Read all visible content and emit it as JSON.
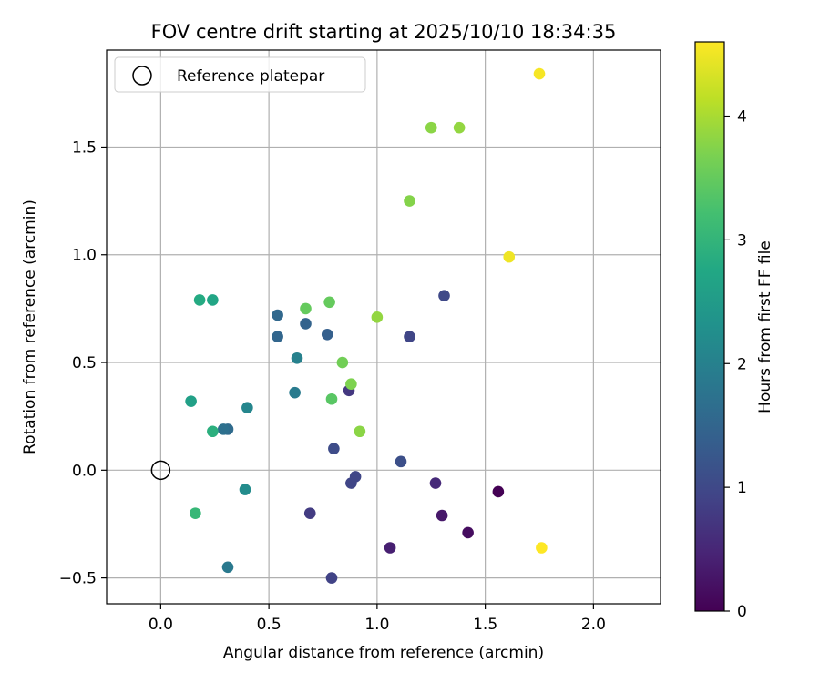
{
  "chart_data": {
    "type": "scatter",
    "title": "FOV centre drift starting at 2025/10/10 18:34:35",
    "xlabel": "Angular distance from reference (arcmin)",
    "ylabel": "Rotation from reference (arcmin)",
    "xlim": [
      -0.25,
      2.31
    ],
    "ylim": [
      -0.62,
      1.95
    ],
    "xticks": [
      0.0,
      0.5,
      1.0,
      1.5,
      2.0
    ],
    "xtick_labels": [
      "0.0",
      "0.5",
      "1.0",
      "1.5",
      "2.0"
    ],
    "yticks": [
      -0.5,
      0.0,
      0.5,
      1.0,
      1.5
    ],
    "ytick_labels": [
      "−0.5",
      "0.0",
      "0.5",
      "1.0",
      "1.5"
    ],
    "grid": true,
    "legend": {
      "location": "upper-left",
      "entries": [
        "Reference platepar"
      ]
    },
    "reference_point": {
      "x": 0.0,
      "y": 0.0,
      "label": "Reference platepar"
    },
    "colorbar": {
      "label": "Hours from first FF file",
      "colormap": "viridis",
      "range": [
        0,
        4.6
      ],
      "ticks": [
        0,
        1,
        2,
        3,
        4
      ],
      "tick_labels": [
        "0",
        "1",
        "2",
        "3",
        "4"
      ]
    },
    "points": [
      {
        "x": 1.56,
        "y": -0.1,
        "hours": 0.0
      },
      {
        "x": 1.42,
        "y": -0.29,
        "hours": 0.15
      },
      {
        "x": 1.3,
        "y": -0.21,
        "hours": 0.3
      },
      {
        "x": 1.06,
        "y": -0.36,
        "hours": 0.4
      },
      {
        "x": 1.27,
        "y": -0.06,
        "hours": 0.55
      },
      {
        "x": 0.87,
        "y": 0.37,
        "hours": 0.75
      },
      {
        "x": 0.69,
        "y": -0.2,
        "hours": 0.8
      },
      {
        "x": 0.79,
        "y": -0.5,
        "hours": 0.9
      },
      {
        "x": 0.9,
        "y": -0.03,
        "hours": 0.95
      },
      {
        "x": 0.88,
        "y": -0.06,
        "hours": 0.95
      },
      {
        "x": 1.15,
        "y": 0.62,
        "hours": 0.95
      },
      {
        "x": 1.31,
        "y": 0.81,
        "hours": 1.0
      },
      {
        "x": 0.8,
        "y": 0.1,
        "hours": 1.05
      },
      {
        "x": 1.11,
        "y": 0.04,
        "hours": 1.1
      },
      {
        "x": 0.77,
        "y": 0.63,
        "hours": 1.4
      },
      {
        "x": 0.67,
        "y": 0.68,
        "hours": 1.45
      },
      {
        "x": 0.54,
        "y": 0.62,
        "hours": 1.5
      },
      {
        "x": 0.54,
        "y": 0.72,
        "hours": 1.55
      },
      {
        "x": 0.31,
        "y": 0.19,
        "hours": 1.6
      },
      {
        "x": 0.29,
        "y": 0.19,
        "hours": 1.7
      },
      {
        "x": 0.31,
        "y": -0.45,
        "hours": 1.85
      },
      {
        "x": 0.62,
        "y": 0.36,
        "hours": 1.9
      },
      {
        "x": 0.63,
        "y": 0.52,
        "hours": 2.0
      },
      {
        "x": 0.4,
        "y": 0.29,
        "hours": 2.1
      },
      {
        "x": 0.39,
        "y": -0.09,
        "hours": 2.2
      },
      {
        "x": 0.14,
        "y": 0.32,
        "hours": 2.6
      },
      {
        "x": 0.24,
        "y": 0.79,
        "hours": 2.7
      },
      {
        "x": 0.18,
        "y": 0.79,
        "hours": 2.8
      },
      {
        "x": 0.24,
        "y": 0.18,
        "hours": 2.9
      },
      {
        "x": 0.16,
        "y": -0.2,
        "hours": 3.05
      },
      {
        "x": 0.79,
        "y": 0.33,
        "hours": 3.4
      },
      {
        "x": 0.78,
        "y": 0.78,
        "hours": 3.5
      },
      {
        "x": 0.67,
        "y": 0.75,
        "hours": 3.5
      },
      {
        "x": 0.84,
        "y": 0.5,
        "hours": 3.6
      },
      {
        "x": 0.88,
        "y": 0.4,
        "hours": 3.7
      },
      {
        "x": 0.92,
        "y": 0.18,
        "hours": 3.8
      },
      {
        "x": 1.15,
        "y": 1.25,
        "hours": 3.75
      },
      {
        "x": 1.0,
        "y": 0.71,
        "hours": 3.85
      },
      {
        "x": 1.25,
        "y": 1.59,
        "hours": 3.8
      },
      {
        "x": 1.38,
        "y": 1.59,
        "hours": 3.85
      },
      {
        "x": 1.61,
        "y": 0.99,
        "hours": 4.5
      },
      {
        "x": 1.75,
        "y": 1.84,
        "hours": 4.55
      },
      {
        "x": 1.76,
        "y": -0.36,
        "hours": 4.6
      }
    ]
  }
}
